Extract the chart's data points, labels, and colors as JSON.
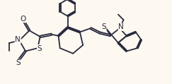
{
  "bg_color": "#fdf8f0",
  "bond_color": "#2a2a3e",
  "bond_width": 1.3,
  "dbo": 0.055,
  "xlim": [
    0,
    10.5
  ],
  "ylim": [
    0,
    5.5
  ]
}
